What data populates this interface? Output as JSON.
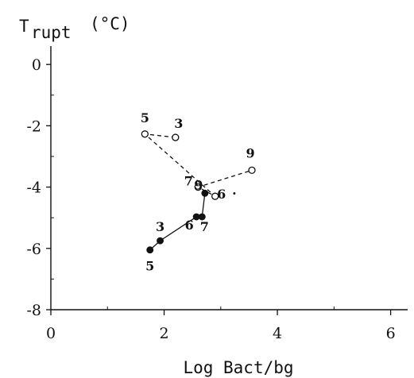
{
  "chart_data": {
    "type": "scatter",
    "title": "",
    "ylabel_main": "T",
    "ylabel_sub": "rupt",
    "ylabel_unit": "(°C)",
    "xlabel": "Log Bact/bg",
    "xlim": [
      0,
      6.3
    ],
    "ylim": [
      -8,
      0.6
    ],
    "x_ticks": [
      0,
      2,
      4,
      6
    ],
    "x_tick_labels": [
      "0",
      "2",
      "4",
      "6"
    ],
    "x_minor_ticks": [
      1,
      3,
      5
    ],
    "y_ticks": [
      0,
      -2,
      -4,
      -6,
      -8
    ],
    "y_tick_labels": [
      "0",
      "-2",
      "-4",
      "-6",
      "-8"
    ],
    "y_minor_ticks": [
      -1,
      -3,
      -5,
      -7
    ],
    "series": [
      {
        "marker": "open-circle",
        "line": "dashed",
        "points": [
          {
            "label": "3",
            "x": 2.2,
            "y": -2.38
          },
          {
            "label": "5",
            "x": 1.66,
            "y": -2.27
          },
          {
            "label": "6",
            "x": 2.9,
            "y": -4.3
          },
          {
            "label": "7",
            "x": 2.6,
            "y": -4.0
          },
          {
            "label": "9",
            "x": 3.55,
            "y": -3.45
          }
        ],
        "path_order": [
          "3",
          "5",
          "6",
          "7",
          "9"
        ]
      },
      {
        "marker": "filled-circle",
        "line": "solid",
        "points": [
          {
            "label": "5",
            "x": 1.75,
            "y": -6.05
          },
          {
            "label": "3",
            "x": 1.93,
            "y": -5.75
          },
          {
            "label": "6",
            "x": 2.57,
            "y": -4.97
          },
          {
            "label": "7",
            "x": 2.67,
            "y": -4.97
          },
          {
            "label": "9",
            "x": 2.72,
            "y": -4.2
          }
        ],
        "path_order": [
          "5",
          "3",
          "6",
          "7",
          "9"
        ]
      }
    ],
    "point_label_offsets": {
      "open": {
        "3": [
          4,
          -12
        ],
        "5": [
          0,
          -15
        ],
        "6": [
          8,
          3
        ],
        "7": [
          -12,
          -2
        ],
        "9": [
          -2,
          -16
        ]
      },
      "filled": {
        "5": [
          0,
          26
        ],
        "3": [
          0,
          -12
        ],
        "6": [
          -9,
          16
        ],
        "7": [
          3,
          18
        ],
        "9": [
          -8,
          -5
        ]
      }
    },
    "annotations": [
      {
        "text": ".",
        "x": 3.2,
        "y": -4.25
      }
    ]
  }
}
